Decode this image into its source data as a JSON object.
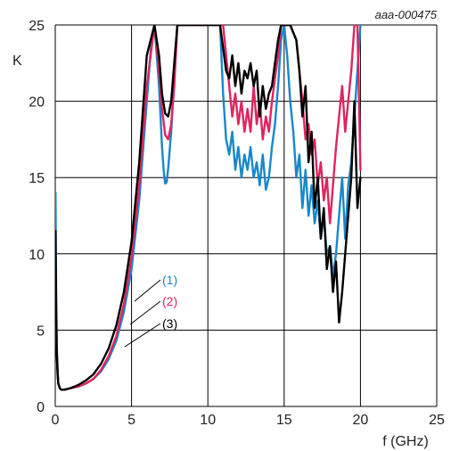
{
  "chart_data": {
    "type": "line",
    "reference_code": "aaa-000475",
    "xlabel": "f (GHz)",
    "ylabel": "K",
    "xlim": [
      0,
      25
    ],
    "ylim": [
      0,
      25
    ],
    "xticks": [
      0,
      5,
      10,
      15,
      20,
      25
    ],
    "yticks": [
      0,
      5,
      10,
      15,
      20,
      25
    ],
    "grid": true,
    "series": [
      {
        "name": "(1)",
        "color": "#1a87c7",
        "x": [
          0.02,
          0.05,
          0.1,
          0.15,
          0.2,
          0.3,
          0.4,
          0.6,
          1.0,
          1.5,
          2.0,
          2.5,
          3.0,
          3.5,
          4.0,
          4.5,
          5.0,
          5.5,
          6.0,
          6.3,
          6.5,
          6.8,
          7.0,
          7.1,
          7.2,
          7.3,
          7.4,
          7.6,
          7.8,
          8.0,
          8.2,
          10.8,
          11.0,
          11.2,
          11.4,
          11.6,
          11.8,
          12.0,
          12.2,
          12.4,
          12.6,
          12.8,
          13.0,
          13.2,
          13.4,
          13.6,
          13.8,
          14.0,
          14.2,
          14.4,
          14.6,
          14.8,
          15.0,
          15.2,
          15.4,
          15.6,
          15.8,
          16.0,
          16.2,
          16.4,
          16.6,
          16.8,
          17.0,
          17.2,
          17.4,
          17.6,
          17.8,
          18.0,
          18.2,
          18.4,
          18.6,
          18.8,
          19.0,
          19.2,
          19.4,
          19.6,
          19.8,
          20.0
        ],
        "y": [
          14.0,
          8.0,
          4.0,
          2.5,
          1.5,
          1.2,
          1.1,
          1.1,
          1.2,
          1.3,
          1.5,
          1.8,
          2.3,
          3.1,
          4.3,
          6.2,
          9.0,
          13.5,
          20.0,
          24.0,
          25.0,
          21.0,
          17.0,
          15.5,
          14.6,
          14.7,
          15.6,
          18.0,
          21.5,
          25.0,
          25.0,
          25.0,
          20.5,
          17.5,
          16.5,
          18.0,
          15.5,
          17.0,
          15.0,
          16.5,
          15.5,
          17.0,
          15.0,
          16.0,
          14.5,
          16.5,
          14.2,
          15.0,
          17.0,
          18.5,
          21.0,
          24.0,
          25.0,
          23.0,
          20.0,
          18.0,
          15.0,
          16.5,
          13.0,
          15.5,
          12.5,
          14.5,
          12.0,
          13.5,
          11.0,
          12.5,
          10.0,
          10.5,
          8.5,
          10.0,
          12.5,
          15.0,
          11.0,
          14.5,
          16.0,
          19.0,
          22.0,
          25.0
        ]
      },
      {
        "name": "(2)",
        "color": "#e0245e",
        "x": [
          0.02,
          0.05,
          0.1,
          0.15,
          0.2,
          0.3,
          0.4,
          0.6,
          1.0,
          1.5,
          2.0,
          2.5,
          3.0,
          3.5,
          4.0,
          4.5,
          5.0,
          5.5,
          6.0,
          6.5,
          6.8,
          7.0,
          7.2,
          7.4,
          7.6,
          7.8,
          8.0,
          11.0,
          11.2,
          11.4,
          11.6,
          11.8,
          12.0,
          12.2,
          12.4,
          12.6,
          12.8,
          13.0,
          13.2,
          13.4,
          13.6,
          13.8,
          14.0,
          14.2,
          14.4,
          14.6,
          14.8,
          15.0,
          15.4,
          15.8,
          16.0,
          16.2,
          16.4,
          16.6,
          16.8,
          17.0,
          17.2,
          17.4,
          17.6,
          17.8,
          18.0,
          18.2,
          18.4,
          18.6,
          18.8,
          19.0,
          19.2,
          19.4,
          19.6,
          19.8,
          20.0
        ],
        "y": [
          9.0,
          6.0,
          3.5,
          2.2,
          1.5,
          1.2,
          1.1,
          1.1,
          1.2,
          1.3,
          1.5,
          1.8,
          2.4,
          3.3,
          4.6,
          6.7,
          9.8,
          14.5,
          21.0,
          25.0,
          22.0,
          19.5,
          17.8,
          17.5,
          18.5,
          21.0,
          25.0,
          25.0,
          23.0,
          21.0,
          19.0,
          20.5,
          18.5,
          20.0,
          18.0,
          19.5,
          18.0,
          21.0,
          18.5,
          20.0,
          17.5,
          19.0,
          18.0,
          20.0,
          21.5,
          23.0,
          25.0,
          25.0,
          25.0,
          24.0,
          22.0,
          20.0,
          17.5,
          18.5,
          16.5,
          17.5,
          14.5,
          16.0,
          13.5,
          15.0,
          12.0,
          14.5,
          17.0,
          19.0,
          21.0,
          18.0,
          20.0,
          22.0,
          25.0,
          25.0,
          15.5
        ]
      },
      {
        "name": "(3)",
        "color": "#000000",
        "x": [
          0.02,
          0.05,
          0.1,
          0.15,
          0.2,
          0.3,
          0.4,
          0.6,
          1.0,
          1.5,
          2.0,
          2.5,
          3.0,
          3.5,
          4.0,
          4.5,
          5.0,
          5.5,
          6.0,
          6.5,
          6.8,
          7.0,
          7.2,
          7.4,
          7.6,
          7.8,
          8.0,
          10.8,
          11.0,
          11.2,
          11.4,
          11.6,
          11.8,
          12.0,
          12.2,
          12.4,
          12.6,
          12.8,
          13.0,
          13.2,
          13.4,
          13.6,
          13.8,
          14.0,
          14.2,
          14.4,
          14.6,
          14.8,
          15.0,
          15.4,
          15.8,
          16.0,
          16.2,
          16.4,
          16.6,
          16.8,
          17.0,
          17.2,
          17.4,
          17.6,
          17.8,
          18.0,
          18.2,
          18.4,
          18.6,
          18.8,
          19.0,
          19.2,
          19.4,
          19.6,
          19.8,
          20.0
        ],
        "y": [
          11.5,
          7.0,
          3.5,
          2.2,
          1.5,
          1.2,
          1.1,
          1.1,
          1.2,
          1.4,
          1.7,
          2.1,
          2.8,
          3.8,
          5.3,
          7.5,
          10.8,
          16.0,
          23.0,
          25.0,
          23.0,
          20.5,
          19.2,
          19.0,
          20.0,
          22.5,
          25.0,
          25.0,
          23.5,
          22.0,
          21.5,
          23.0,
          21.0,
          22.5,
          20.5,
          22.0,
          21.5,
          22.5,
          21.0,
          22.0,
          19.0,
          21.0,
          19.5,
          20.5,
          21.0,
          22.5,
          24.0,
          25.0,
          25.0,
          25.0,
          24.0,
          22.0,
          19.0,
          21.0,
          16.0,
          18.0,
          13.0,
          15.0,
          11.0,
          13.0,
          9.0,
          10.5,
          7.5,
          9.5,
          5.5,
          7.5,
          10.0,
          12.5,
          15.0,
          20.0,
          13.0,
          15.0
        ]
      }
    ]
  },
  "colors": {
    "grid": "#000000",
    "text": "#222222"
  }
}
